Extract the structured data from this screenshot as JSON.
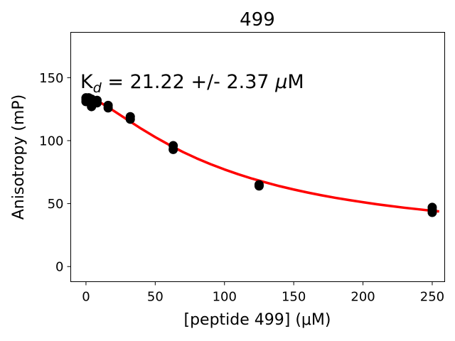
{
  "chart_data": {
    "type": "scatter",
    "title": "499",
    "xlabel": "[peptide 499] (μM)",
    "ylabel": "Anisotropy (mP)",
    "annotation": {
      "prefix": "K",
      "subscript": "d",
      "rest": " = 21.22 +/- 2.37 ",
      "unit_mu": "μ",
      "unit": "M"
    },
    "xlim": [
      -11,
      259
    ],
    "ylim": [
      -12,
      186
    ],
    "x_ticks": [
      0,
      50,
      100,
      150,
      200,
      250
    ],
    "y_ticks": [
      0,
      50,
      100,
      150
    ],
    "grid": false,
    "marker_color": "#000000",
    "fit_color": "#ff0000",
    "series": [
      {
        "type": "scatter",
        "x": [
          0,
          0,
          0,
          2,
          2,
          4,
          4,
          4,
          8,
          8,
          16,
          16,
          32,
          32,
          63,
          63,
          125,
          125,
          250,
          250,
          250
        ],
        "y": [
          134,
          133,
          131,
          134,
          131,
          133,
          129,
          127,
          132,
          130,
          128,
          126,
          119,
          117,
          96,
          93,
          65,
          64,
          47,
          45,
          43
        ]
      },
      {
        "type": "line",
        "x": [
          0,
          5,
          10,
          15,
          20,
          25,
          30,
          40,
          50,
          60,
          70,
          80,
          90,
          100,
          110,
          120,
          130,
          140,
          150,
          160,
          170,
          180,
          190,
          200,
          210,
          220,
          230,
          240,
          250,
          255
        ],
        "y": [
          135.5,
          133.4,
          130.5,
          127.2,
          123.7,
          120.1,
          116.5,
          109.4,
          102.8,
          96.7,
          91.0,
          85.9,
          81.3,
          77.1,
          73.3,
          69.8,
          66.7,
          63.8,
          61.2,
          58.8,
          56.6,
          54.6,
          52.8,
          51.1,
          49.5,
          48.1,
          46.7,
          45.5,
          44.3,
          43.8
        ]
      }
    ]
  }
}
